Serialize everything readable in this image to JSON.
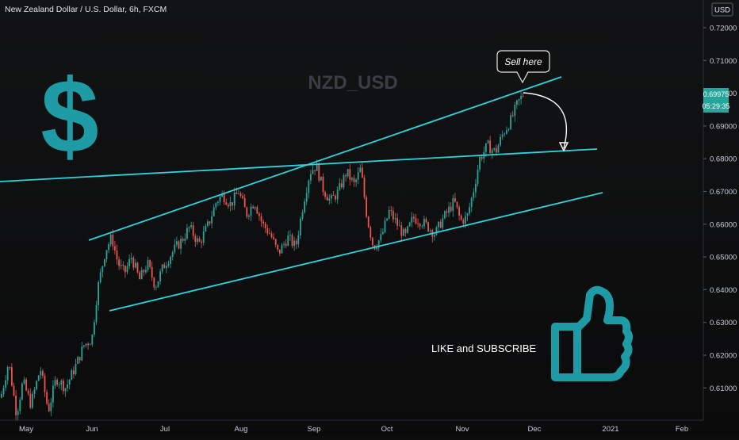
{
  "chart_data": {
    "type": "candlestick",
    "title": "New Zealand Dollar / U.S. Dollar, 6h, FXCM",
    "watermark": "NZD_USD",
    "currency": "USD",
    "y_ticks": [
      "0.72000",
      "0.71000",
      "0.70000",
      "0.69000",
      "0.68000",
      "0.67000",
      "0.66000",
      "0.65000",
      "0.64000",
      "0.63000",
      "0.62000",
      "0.61000"
    ],
    "x_ticks": [
      "May",
      "Jun",
      "Jul",
      "Aug",
      "Sep",
      "Oct",
      "Nov",
      "Dec",
      "2021",
      "Feb"
    ],
    "ylim": [
      0.6,
      0.725
    ],
    "last_price": "0.69975",
    "countdown": "05:29:35",
    "colors": {
      "up": "#26a69a",
      "down": "#ef5350",
      "trendline": "#2bd5df",
      "price_badge": "#26a69a",
      "icons": "#1e9ba4"
    },
    "series": [
      {
        "x": "May",
        "close": 0.603
      },
      {
        "x": "Jun",
        "close": 0.65
      },
      {
        "x": "Jul",
        "close": 0.653
      },
      {
        "x": "Aug",
        "close": 0.671
      },
      {
        "x": "Sep",
        "close": 0.677
      },
      {
        "x": "Oct",
        "close": 0.661
      },
      {
        "x": "Nov",
        "close": 0.661
      },
      {
        "x": "Dec",
        "close": 0.7
      }
    ],
    "annotations": {
      "sell": "Sell here",
      "cta": "LIKE and SUBSCRIBE"
    }
  }
}
